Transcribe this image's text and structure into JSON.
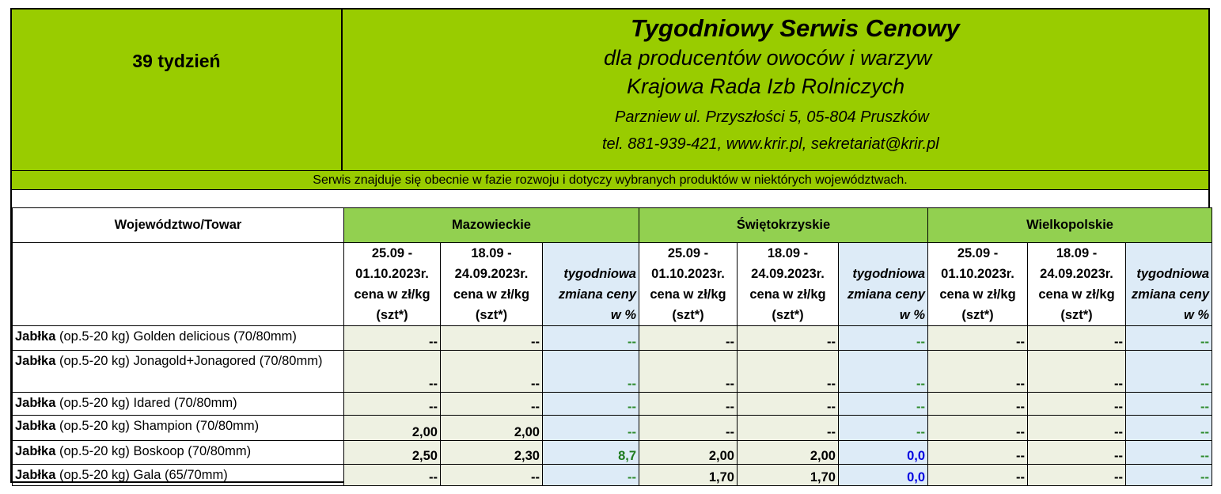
{
  "header": {
    "week": "39 tydzień",
    "title": "Tygodniowy Serwis Cenowy",
    "subtitle": "dla producentów owoców i warzyw",
    "organization": "Krajowa Rada Izb Rolniczych",
    "address": "Parzniew ul. Przyszłości 5, 05-804 Pruszków",
    "contact": "tel. 881-939-421, www.krir.pl, sekretariat@krir.pl"
  },
  "notice": "Serwis znajduje się obecnie w  fazie rozwoju i dotyczy wybranych produktów w niektórych województwach.",
  "table": {
    "corner": "Województwo/Towar",
    "regions": [
      {
        "name": "Mazowieckie",
        "columns": [
          "25.09 - 01.10.2023r. cena w zł/kg (szt*)",
          "18.09 - 24.09.2023r. cena w zł/kg (szt*)",
          "tygodniowa zmiana ceny w %"
        ]
      },
      {
        "name": "Świętokrzyskie",
        "columns": [
          "25.09 - 01.10.2023r. cena w zł/kg (szt*)",
          "18.09 - 24.09.2023r. cena w zł/kg (szt*)",
          "tygodniowa zmiana ceny w %"
        ]
      },
      {
        "name": "Wielkopolskie",
        "columns": [
          "25.09 - 01.10.2023r. cena w zł/kg (szt*)",
          "18.09 - 24.09.2023r. cena w zł/kg (szt*)",
          "tygodniowa zmiana ceny w %"
        ]
      }
    ],
    "rows": [
      {
        "product": "Jabłka",
        "detail": "(op.5-20 kg)  Golden delicious  (70/80mm)",
        "cells": [
          [
            "--",
            "--",
            {
              "text": "--",
              "color": "#2e8b2e"
            }
          ],
          [
            "--",
            "--",
            {
              "text": "--",
              "color": "#2e8b2e"
            }
          ],
          [
            "--",
            "--",
            {
              "text": "--",
              "color": "#2e8b2e"
            }
          ]
        ]
      },
      {
        "product": "Jabłka",
        "detail": "(op.5-20 kg) Jonagold+Jonagored (70/80mm)",
        "cells": [
          [
            "--",
            "--",
            {
              "text": "--",
              "color": "#2e8b2e"
            }
          ],
          [
            "--",
            "--",
            {
              "text": "--",
              "color": "#2e8b2e"
            }
          ],
          [
            "--",
            "--",
            {
              "text": "--",
              "color": "#2e8b2e"
            }
          ]
        ]
      },
      {
        "product": "Jabłka",
        "detail": "(op.5-20 kg)  Idared (70/80mm)",
        "cells": [
          [
            "--",
            "--",
            {
              "text": "--",
              "color": "#2e8b2e"
            }
          ],
          [
            "--",
            "--",
            {
              "text": "--",
              "color": "#2e8b2e"
            }
          ],
          [
            "--",
            "--",
            {
              "text": "--",
              "color": "#2e8b2e"
            }
          ]
        ]
      },
      {
        "product": "Jabłka",
        "detail": "(op.5-20 kg) Shampion (70/80mm)",
        "cells": [
          [
            "2,00",
            "2,00",
            {
              "text": "--",
              "color": "#2e8b2e"
            }
          ],
          [
            "--",
            "--",
            {
              "text": "--",
              "color": "#2e8b2e"
            }
          ],
          [
            "--",
            "--",
            {
              "text": "--",
              "color": "#2e8b2e"
            }
          ]
        ]
      },
      {
        "product": "Jabłka",
        "detail": "(op.5-20 kg) Boskoop (70/80mm)",
        "cells": [
          [
            "2,50",
            "2,30",
            {
              "text": "8,7",
              "color": "#1e7b1e"
            }
          ],
          [
            "2,00",
            "2,00",
            {
              "text": "0,0",
              "color": "#0000e0"
            }
          ],
          [
            "--",
            "--",
            {
              "text": "--",
              "color": "#2e8b2e"
            }
          ]
        ]
      },
      {
        "product": "Jabłka",
        "detail": "(op.5-20 kg) Gala (65/70mm)",
        "cells": [
          [
            "--",
            "--",
            {
              "text": "--",
              "color": "#2e8b2e"
            }
          ],
          [
            "1,70",
            "1,70",
            {
              "text": "0,0",
              "color": "#0000e0"
            }
          ],
          [
            "--",
            "--",
            {
              "text": "--",
              "color": "#2e8b2e"
            }
          ]
        ]
      }
    ]
  }
}
